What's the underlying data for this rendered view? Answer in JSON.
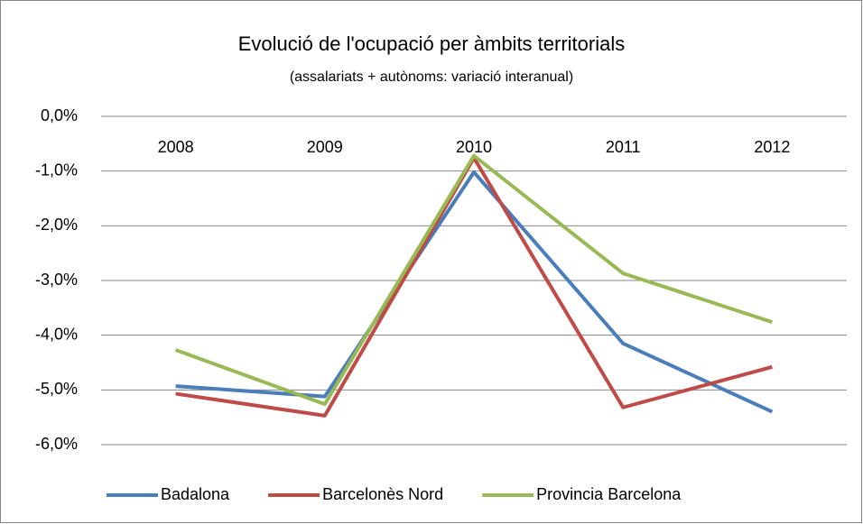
{
  "chart_data": {
    "type": "line",
    "title": "Evolució de l'ocupació per àmbits territorials",
    "subtitle": "(assalariats + autònoms: variació interanual)",
    "categories": [
      "2008",
      "2009",
      "2010",
      "2011",
      "2012"
    ],
    "series": [
      {
        "name": "Badalona",
        "color": "#4a7ebb",
        "values": [
          -4.93,
          -5.12,
          -1.02,
          -4.15,
          -5.4
        ]
      },
      {
        "name": "Barcelonès Nord",
        "color": "#be4b48",
        "values": [
          -5.07,
          -5.47,
          -0.76,
          -5.32,
          -4.58
        ]
      },
      {
        "name": "Provincia Barcelona",
        "color": "#98b954",
        "values": [
          -4.27,
          -5.26,
          -0.72,
          -2.87,
          -3.76
        ]
      }
    ],
    "ylim": [
      -6,
      0
    ],
    "yticks": [
      {
        "value": 0,
        "label": "0,0%"
      },
      {
        "value": -1,
        "label": "-1,0%"
      },
      {
        "value": -2,
        "label": "-2,0%"
      },
      {
        "value": -3,
        "label": "-3,0%"
      },
      {
        "value": -4,
        "label": "-4,0%"
      },
      {
        "value": -5,
        "label": "-5,0%"
      },
      {
        "value": -6,
        "label": "-6,0%"
      }
    ],
    "grid": true,
    "legend": "bottom"
  }
}
